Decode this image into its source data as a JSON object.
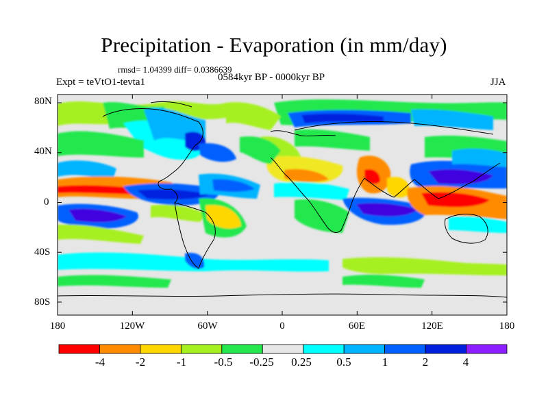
{
  "title": "Precipitation - Evaporation (in mm/day)",
  "stats": "rmsd= 1.04399 diff= 0.0386639",
  "period": "0584kyr BP - 0000kyr BP",
  "experiment": "Expt = teVtO1-tevta1",
  "season": "JJA",
  "lat_labels": [
    "80N",
    "40N",
    "0",
    "40S",
    "80S"
  ],
  "lon_labels": [
    "180",
    "120W",
    "60W",
    "0",
    "60E",
    "120E",
    "180"
  ],
  "colorbar": {
    "labels": [
      "-4",
      "-2",
      "-1",
      "-0.5",
      "-0.25",
      "0.25",
      "0.5",
      "1",
      "2",
      "4"
    ],
    "colors": [
      "#ff0000",
      "#ff8c00",
      "#ffd700",
      "#f0e820",
      "#a6f020",
      "#22e84e",
      "#e6e6e6",
      "#00ffff",
      "#00b4ff",
      "#0060ff",
      "#0020e0",
      "#4000e0",
      "#8c1eff"
    ]
  }
}
